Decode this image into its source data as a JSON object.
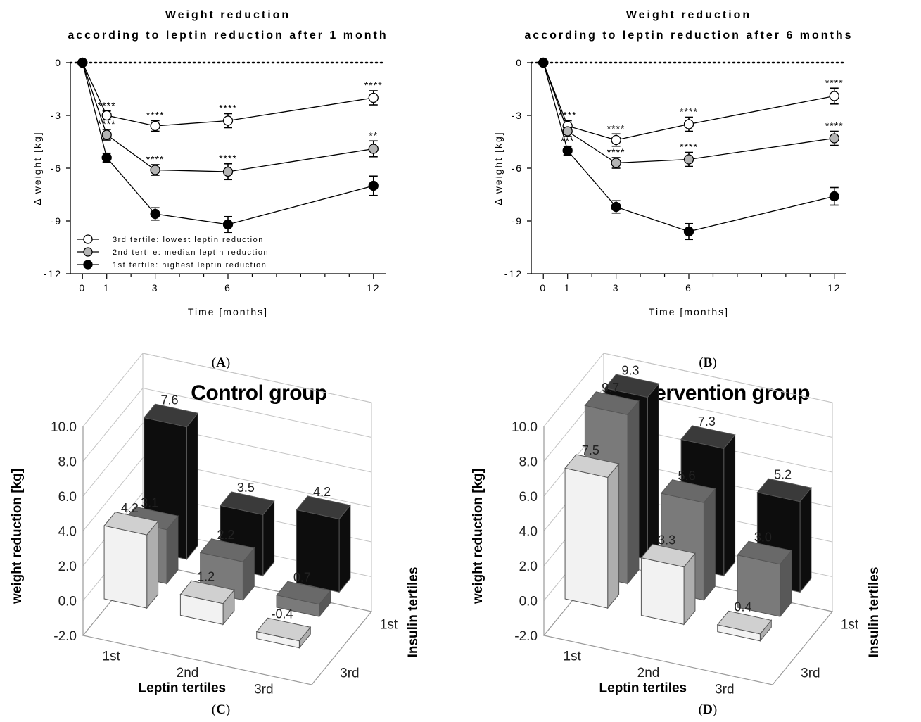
{
  "captions": {
    "A": "A",
    "B": "B",
    "C": "C",
    "D": "D"
  },
  "chart_data": [
    {
      "type": "line",
      "title": "Weight reduction",
      "subtitle": "according to leptin reduction after 1 month",
      "xlabel": "Time [months]",
      "ylabel": "Δ weight [kg]",
      "x": [
        0,
        1,
        3,
        6,
        12
      ],
      "xticks": [
        "0",
        "1",
        "3",
        "6",
        "12"
      ],
      "xlim": [
        -0.5,
        12.5
      ],
      "ylim": [
        -12,
        0
      ],
      "yticks": [
        0,
        -3,
        -6,
        -9,
        -12
      ],
      "legend_position": "bottom-left",
      "series": [
        {
          "name": "3rd tertile: lowest leptin reduction",
          "fill": "#ffffff",
          "values": [
            0,
            -3.0,
            -3.6,
            -3.3,
            -2.0
          ],
          "errors": [
            0,
            0.25,
            0.3,
            0.4,
            0.4
          ],
          "significance": [
            "",
            "****",
            "****",
            "****",
            "****"
          ]
        },
        {
          "name": "2nd tertile: median leptin reduction",
          "fill": "#b4b4b4",
          "values": [
            0,
            -4.1,
            -6.1,
            -6.2,
            -4.9
          ],
          "errors": [
            0,
            0.3,
            0.3,
            0.45,
            0.45
          ],
          "significance": [
            "",
            "****",
            "****",
            "****",
            "**"
          ]
        },
        {
          "name": "1st tertile: highest leptin reduction",
          "fill": "#000000",
          "values": [
            0,
            -5.4,
            -8.6,
            -9.2,
            -7.0
          ],
          "errors": [
            0,
            0.25,
            0.35,
            0.45,
            0.55
          ],
          "significance": [
            "",
            "",
            "",
            "",
            ""
          ]
        }
      ]
    },
    {
      "type": "line",
      "title": "Weight reduction",
      "subtitle": "according to leptin reduction after 6 months",
      "xlabel": "Time [months]",
      "ylabel": "Δ weight [kg]",
      "x": [
        0,
        1,
        3,
        6,
        12
      ],
      "xticks": [
        "0",
        "1",
        "3",
        "6",
        "12"
      ],
      "xlim": [
        -0.5,
        12.5
      ],
      "ylim": [
        -12,
        0
      ],
      "yticks": [
        0,
        -3,
        -6,
        -9,
        -12
      ],
      "series": [
        {
          "fill": "#ffffff",
          "values": [
            0,
            -3.6,
            -4.4,
            -3.5,
            -1.9
          ],
          "errors": [
            0,
            0.3,
            0.35,
            0.4,
            0.45
          ],
          "significance": [
            "",
            "****",
            "****",
            "****",
            "****"
          ]
        },
        {
          "fill": "#b4b4b4",
          "values": [
            0,
            -3.9,
            -5.7,
            -5.5,
            -4.3
          ],
          "errors": [
            0,
            0.3,
            0.3,
            0.4,
            0.4
          ],
          "significance": [
            "",
            "",
            "****",
            "****",
            "****"
          ]
        },
        {
          "fill": "#000000",
          "values": [
            0,
            -5.0,
            -8.2,
            -9.6,
            -7.6
          ],
          "errors": [
            0,
            0.25,
            0.35,
            0.45,
            0.5
          ],
          "significance": [
            "",
            "***",
            "",
            "",
            ""
          ]
        }
      ]
    },
    {
      "type": "bar",
      "title": "Control group",
      "xlabel": "Leptin tertiles",
      "zlabel": "Insulin tertiles",
      "ylabel": "weight reduction [kg]",
      "ylim": [
        -2,
        10
      ],
      "yticks": [
        "10.0",
        "8.0",
        "6.0",
        "4.0",
        "2.0",
        "0.0",
        "-2.0"
      ],
      "categories": [
        "1st",
        "2nd",
        "3rd"
      ],
      "depth_categories": [
        "3rd",
        "1st"
      ],
      "series": [
        {
          "color": "#f2f2f2",
          "values": [
            4.2,
            1.2,
            -0.4
          ],
          "labels": [
            "4.2",
            "1.2",
            "-0.4"
          ]
        },
        {
          "color": "#7a7a7a",
          "values": [
            3.1,
            2.2,
            0.7
          ],
          "labels": [
            "3.1",
            "2.2",
            "0.7"
          ]
        },
        {
          "color": "#0d0d0d",
          "values": [
            7.6,
            3.5,
            4.2
          ],
          "labels": [
            "7.6",
            "3.5",
            "4.2"
          ]
        }
      ]
    },
    {
      "type": "bar",
      "title": "Intervention group",
      "xlabel": "Leptin tertiles",
      "zlabel": "Insulin tertiles",
      "ylabel": "weight reduction [kg]",
      "ylim": [
        -2,
        10
      ],
      "yticks": [
        "10.0",
        "8.0",
        "6.0",
        "4.0",
        "2.0",
        "0.0",
        "-2.0"
      ],
      "categories": [
        "1st",
        "2nd",
        "3rd"
      ],
      "depth_categories": [
        "3rd",
        "1st"
      ],
      "series": [
        {
          "color": "#f2f2f2",
          "values": [
            7.5,
            3.3,
            0.4
          ],
          "labels": [
            "7.5",
            "3.3",
            "0.4"
          ]
        },
        {
          "color": "#7a7a7a",
          "values": [
            9.7,
            5.6,
            3.0
          ],
          "labels": [
            "9.7",
            "5.6",
            "3.0"
          ]
        },
        {
          "color": "#0d0d0d",
          "values": [
            9.3,
            7.3,
            5.2
          ],
          "labels": [
            "9.3",
            "7.3",
            "5.2"
          ]
        }
      ]
    }
  ]
}
